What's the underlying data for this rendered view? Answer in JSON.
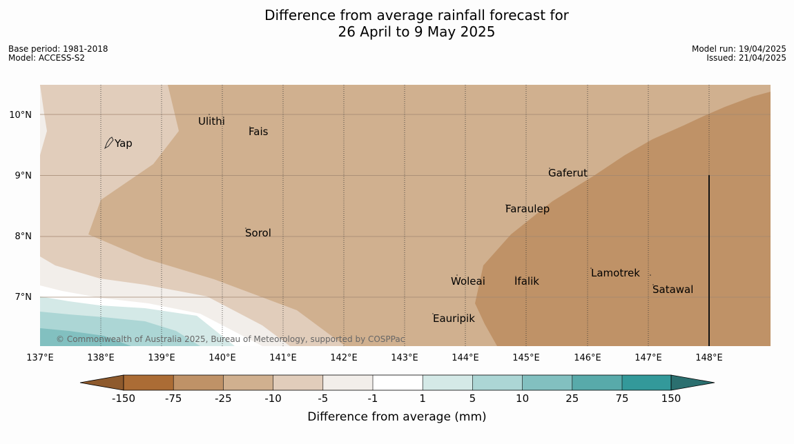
{
  "title": {
    "line1": "Difference from average rainfall forecast for",
    "line2": "26 April to 9 May 2025"
  },
  "meta_left": [
    "Base period: 1981-2018",
    "Model: ACCESS-S2"
  ],
  "meta_right": [
    "Model run: 19/04/2025",
    "Issued: 21/04/2025"
  ],
  "copyright": "© Commonwealth of Australia 2025, Bureau of Meteorology, supported by COSPPac",
  "lon_ticks": [
    "137°E",
    "138°E",
    "139°E",
    "140°E",
    "141°E",
    "142°E",
    "143°E",
    "144°E",
    "145°E",
    "146°E",
    "147°E",
    "148°E"
  ],
  "lat_ticks": [
    "10°N",
    "9°N",
    "8°N",
    "7°N"
  ],
  "places": [
    {
      "name": "Yap"
    },
    {
      "name": "Ulithi"
    },
    {
      "name": "Fais"
    },
    {
      "name": "Gaferut"
    },
    {
      "name": "Faraulep"
    },
    {
      "name": "Sorol"
    },
    {
      "name": "Woleai"
    },
    {
      "name": "Ifalik"
    },
    {
      "name": "Lamotrek"
    },
    {
      "name": "Satawal"
    },
    {
      "name": "Eauripik"
    }
  ],
  "colorbar": {
    "label": "Difference from average (mm)",
    "ticks": [
      "-150",
      "-75",
      "-25",
      "-10",
      "-5",
      "-1",
      "1",
      "5",
      "10",
      "25",
      "75",
      "150"
    ],
    "colors": [
      "#ab6c35",
      "#bf9267",
      "#d0b08f",
      "#e1cdbb",
      "#f2eeea",
      "#ffffff",
      "#d4e9e7",
      "#acd6d5",
      "#82c0c0",
      "#58aaaa",
      "#33999a",
      "#2d7776"
    ],
    "low_extend_color": "#8e5a2d",
    "high_extend_color": "#2b6f6f"
  },
  "map_colors": {
    "very_dry": "#bf9267",
    "dry": "#d0b08f",
    "slightly_dry": "#e1cdbb",
    "near_avg_dry": "#f2eeea",
    "near_avg": "#ffffff",
    "slightly_wet": "#d4e9e7",
    "wet": "#acd6d5",
    "wetter": "#82c0c0"
  }
}
